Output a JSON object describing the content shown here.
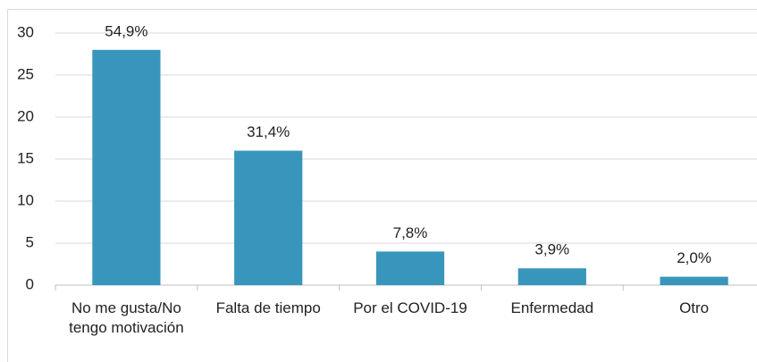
{
  "chart_data": {
    "type": "bar",
    "categories": [
      "No me gusta/No tengo motivación",
      "Falta de tiempo",
      "Por el COVID-19",
      "Enfermedad",
      "Otro"
    ],
    "values": [
      28,
      16,
      4,
      2,
      1
    ],
    "percent_labels": [
      "54,9%",
      "31,4%",
      "7,8%",
      "3,9%",
      "2,0%"
    ],
    "color": "#3896bc",
    "ylim": [
      0,
      30
    ],
    "yticks": [
      0,
      5,
      10,
      15,
      20,
      25,
      30
    ],
    "grid": true
  }
}
